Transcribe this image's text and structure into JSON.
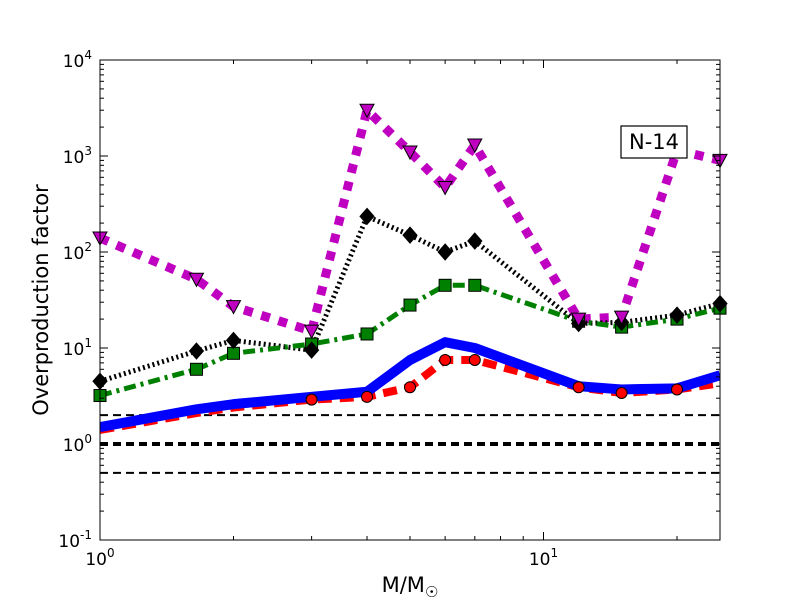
{
  "chart_data": {
    "type": "line",
    "xscale": "log",
    "yscale": "log",
    "xlim": [
      1,
      25
    ],
    "ylim": [
      0.1,
      10000
    ],
    "xlabel": "M/M",
    "xlabel_sub": "☉",
    "ylabel": "Overproduction factor",
    "x_ticks": [
      {
        "value": 1,
        "base": "10",
        "exp": "0"
      },
      {
        "value": 10,
        "base": "10",
        "exp": "1"
      }
    ],
    "y_ticks": [
      {
        "value": 0.1,
        "base": "10",
        "exp": "-1"
      },
      {
        "value": 1,
        "base": "10",
        "exp": "0"
      },
      {
        "value": 10,
        "base": "10",
        "exp": "1"
      },
      {
        "value": 100,
        "base": "10",
        "exp": "2"
      },
      {
        "value": 1000,
        "base": "10",
        "exp": "3"
      },
      {
        "value": 10000,
        "base": "10",
        "exp": "4"
      }
    ],
    "annotation": "N-14",
    "reference_lines": [
      {
        "y": 2.0,
        "style": "thin-dashed"
      },
      {
        "y": 1.0,
        "style": "thick-dashed"
      },
      {
        "y": 0.5,
        "style": "thin-dashed"
      }
    ],
    "series": [
      {
        "color": "#0000ff",
        "line": "solid-thick",
        "marker": "none",
        "x": [
          1,
          1.65,
          2,
          3,
          4,
          5,
          6,
          7,
          12,
          15,
          20,
          25
        ],
        "y": [
          1.5,
          2.3,
          2.6,
          3.1,
          3.5,
          7.5,
          11.5,
          10.0,
          4.0,
          3.7,
          3.8,
          5.2
        ],
        "marker_x": []
      },
      {
        "color": "#ff0000",
        "line": "dashed-thick",
        "marker": "circle",
        "x": [
          1,
          1.65,
          2,
          3,
          4,
          5,
          6,
          7,
          12,
          15,
          20,
          25
        ],
        "y": [
          1.4,
          2.1,
          2.4,
          2.9,
          3.1,
          3.9,
          7.5,
          7.5,
          3.9,
          3.4,
          3.7,
          4.3
        ],
        "marker_x": [
          3,
          4,
          5,
          6,
          7,
          12,
          15,
          20
        ]
      },
      {
        "color": "#008000",
        "line": "dashdot",
        "marker": "square",
        "x": [
          1,
          1.65,
          2,
          3,
          4,
          5,
          6,
          7,
          12,
          15,
          20,
          25
        ],
        "y": [
          3.2,
          6.0,
          8.8,
          11.0,
          14.0,
          28.0,
          45.0,
          45.0,
          19.0,
          16.5,
          20.0,
          26.0
        ],
        "marker_x": [
          1,
          1.65,
          2,
          3,
          4,
          5,
          6,
          7,
          12,
          15,
          20,
          25
        ]
      },
      {
        "color": "#000000",
        "line": "dotted",
        "marker": "diamond",
        "x": [
          1,
          1.65,
          2,
          3,
          4,
          5,
          6,
          7,
          12,
          15,
          20,
          25
        ],
        "y": [
          4.5,
          9.3,
          12.0,
          9.5,
          235.0,
          150.0,
          100.0,
          130.0,
          18.0,
          18.5,
          22.0,
          29.0
        ],
        "marker_x": [
          1,
          1.65,
          2,
          3,
          4,
          5,
          6,
          7,
          12,
          15,
          20,
          25
        ]
      },
      {
        "color": "#c000c0",
        "line": "dotted-thick",
        "marker": "triangle-down",
        "x": [
          1,
          1.65,
          2,
          3,
          4,
          5,
          6,
          7,
          12,
          15,
          20,
          25
        ],
        "y": [
          140.0,
          52.0,
          27.0,
          15.0,
          3000.0,
          1100.0,
          470.0,
          1300.0,
          20.0,
          21.0,
          1150.0,
          900.0
        ],
        "marker_x": [
          1,
          1.65,
          2,
          3,
          4,
          5,
          6,
          7,
          12,
          15,
          20,
          25
        ]
      }
    ]
  }
}
